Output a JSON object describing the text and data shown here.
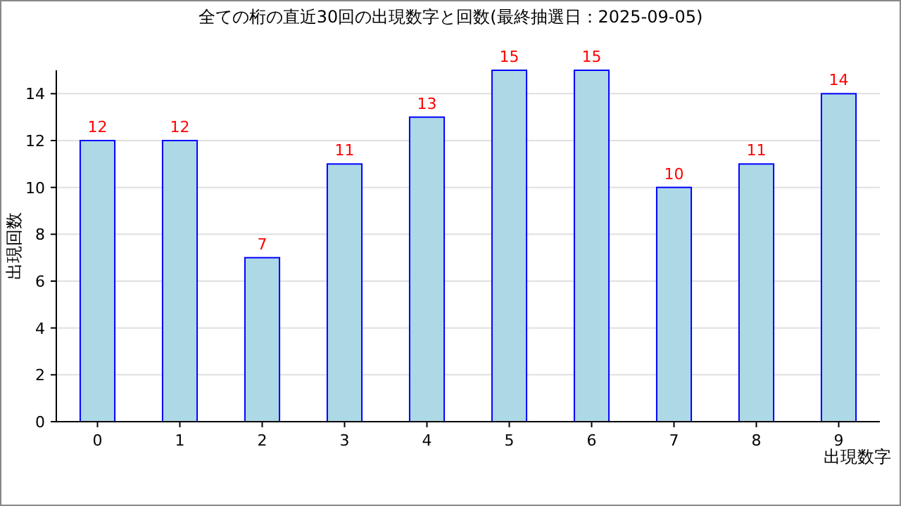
{
  "chart_data": {
    "type": "bar",
    "title": "全ての桁の直近30回の出現数字と回数(最終抽選日：2025-09-05)",
    "xlabel": "出現数字",
    "ylabel": "出現回数",
    "categories": [
      "0",
      "1",
      "2",
      "3",
      "4",
      "5",
      "6",
      "7",
      "8",
      "9"
    ],
    "values": [
      12,
      12,
      7,
      11,
      13,
      15,
      15,
      10,
      11,
      14
    ],
    "color": "#add8e6",
    "ylim": [
      0,
      15
    ],
    "yticks": [
      0,
      2,
      4,
      6,
      8,
      10,
      12,
      14
    ],
    "grid": "y",
    "data_labels": true
  }
}
